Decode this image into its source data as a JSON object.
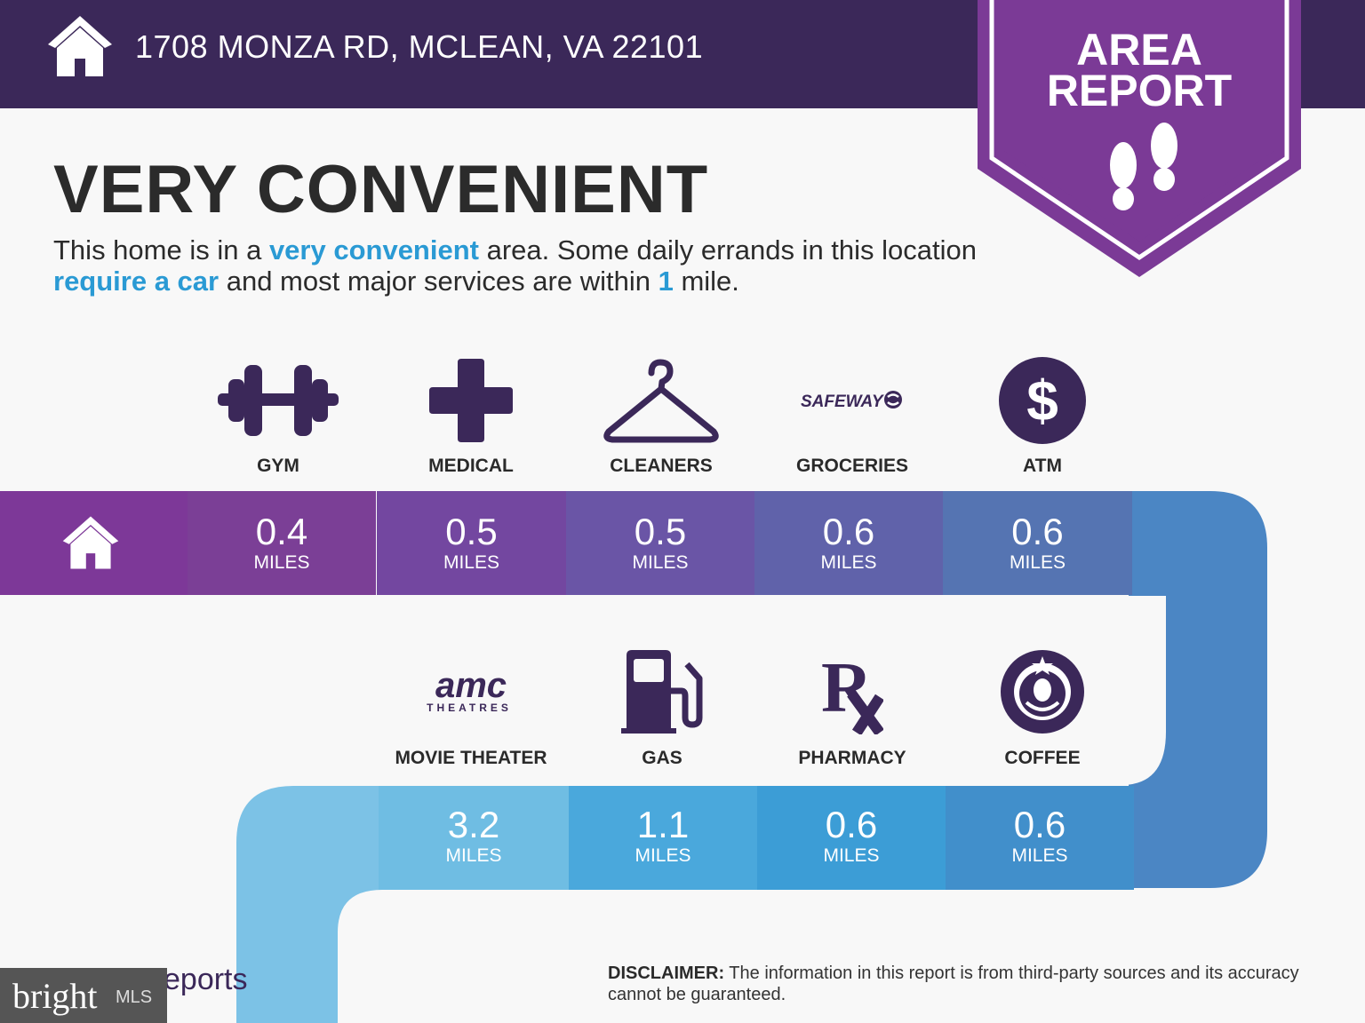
{
  "header": {
    "address": "1708 MONZA RD, MCLEAN, VA 22101",
    "icon": "home-icon",
    "bg_color": "#3b2859"
  },
  "badge": {
    "line1": "AREA",
    "line2": "REPORT",
    "icon": "footprints-icon",
    "color": "#7b3a96"
  },
  "headline": "VERY CONVENIENT",
  "description": {
    "p1": "This home is in a ",
    "h1": "very convenient",
    "p2": " area. Some daily errands in this location ",
    "h2": "require a car",
    "p3": " and most major services are within ",
    "h3": "1",
    "p4": " mile."
  },
  "row1": [
    {
      "label": "GYM",
      "icon": "dumbbell-icon",
      "distance": "0.4",
      "unit": "MILES",
      "color": "#7b3f96"
    },
    {
      "label": "MEDICAL",
      "icon": "medical-cross-icon",
      "distance": "0.5",
      "unit": "MILES",
      "color": "#7347a0"
    },
    {
      "label": "CLEANERS",
      "icon": "hanger-icon",
      "distance": "0.5",
      "unit": "MILES",
      "color": "#6a55a6"
    },
    {
      "label": "GROCERIES",
      "icon": "safeway-logo",
      "logo_text": "SAFEWAY",
      "distance": "0.6",
      "unit": "MILES",
      "color": "#6062aa"
    },
    {
      "label": "ATM",
      "icon": "dollar-icon",
      "distance": "0.6",
      "unit": "MILES",
      "color": "#5574b2"
    }
  ],
  "row2": [
    {
      "label": "MOVIE THEATER",
      "icon": "amc-logo",
      "logo_text": "amc",
      "logo_sub": "THEATRES",
      "distance": "3.2",
      "unit": "MILES",
      "color": "#6fbde3"
    },
    {
      "label": "GAS",
      "icon": "gas-pump-icon",
      "distance": "1.1",
      "unit": "MILES",
      "color": "#4aa8dc"
    },
    {
      "label": "PHARMACY",
      "icon": "rx-icon",
      "distance": "0.6",
      "unit": "MILES",
      "color": "#3c9dd6"
    },
    {
      "label": "COFFEE",
      "icon": "starbucks-logo",
      "distance": "0.6",
      "unit": "MILES",
      "color": "#418fcb"
    }
  ],
  "disclaimer": {
    "bold": "DISCLAIMER:",
    "text": " The information in this report is from third-party sources and its accuracy cannot be guaranteed."
  },
  "footer": {
    "brand": "bright",
    "brand_suffix": "MLS",
    "reports_text": "eports"
  }
}
